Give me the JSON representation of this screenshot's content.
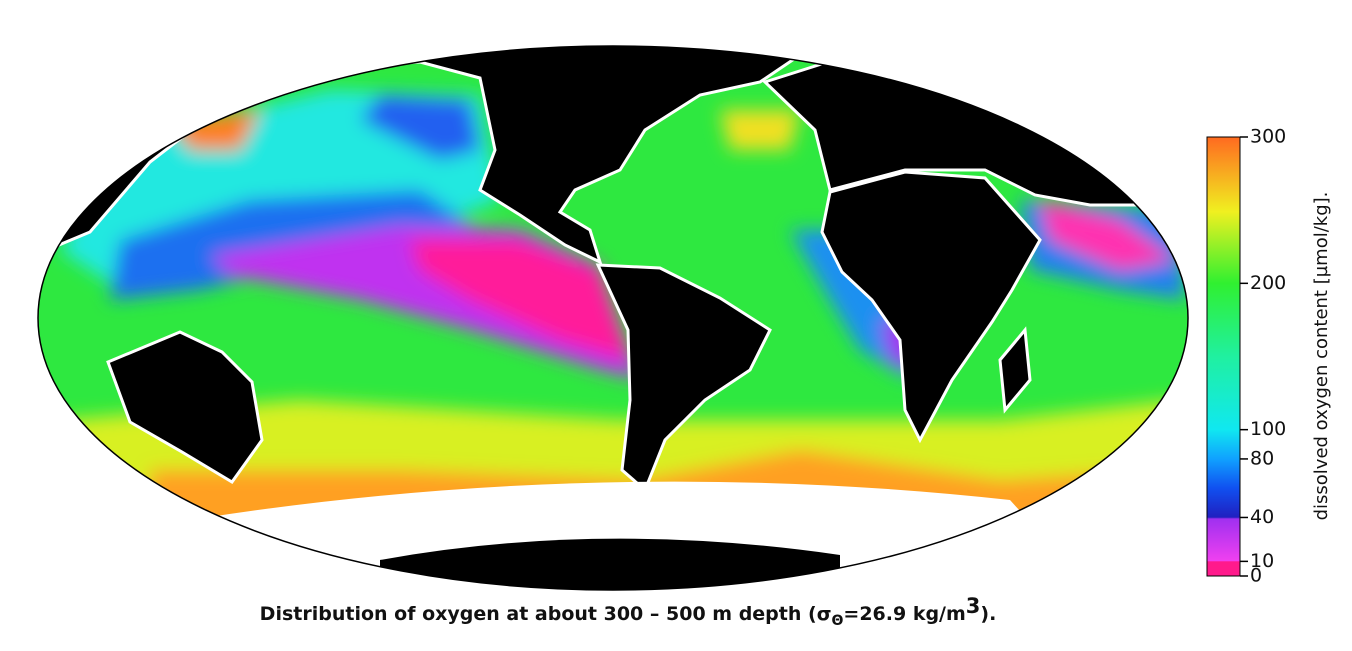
{
  "colorbar": {
    "label": "dissolved oxygen content [µmol/kg].",
    "lim": [
      0,
      300
    ],
    "ticks": [
      0,
      10,
      40,
      80,
      100,
      200,
      300
    ]
  },
  "caption": {
    "main": "Distribution of oxygen at about 300 – 500 m depth (σ",
    "subscript": "Θ",
    "middle": "=26.9 kg/m",
    "superscript": "3",
    "end": ")."
  }
}
